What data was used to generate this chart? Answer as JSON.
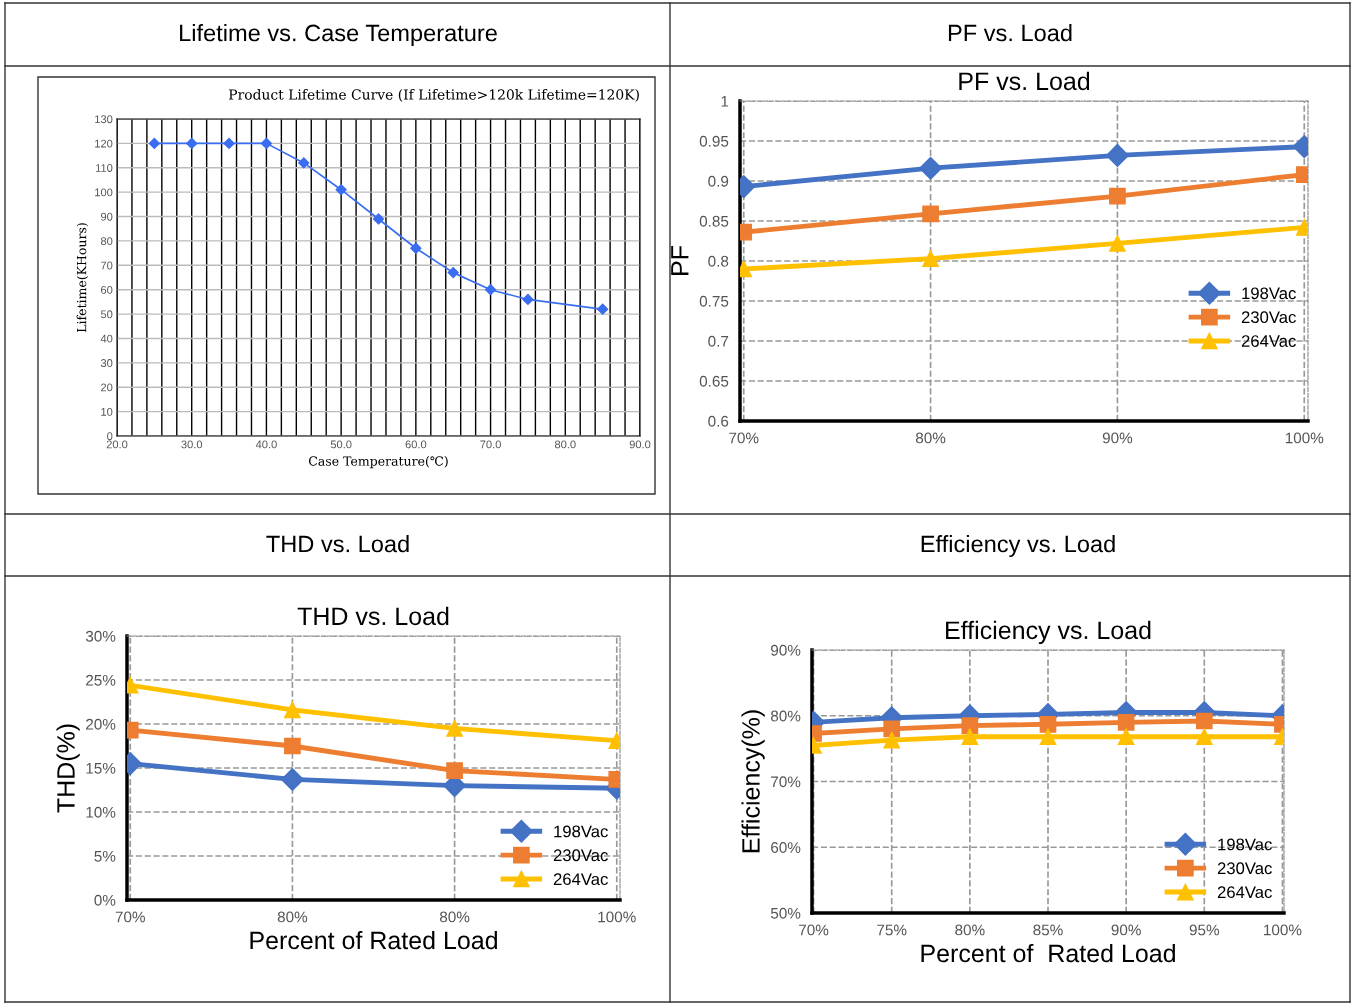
{
  "chart_data": [
    {
      "type": "line",
      "title": "Lifetime vs. Case Temperature",
      "subtitle": "Product Lifetime Curve (If Lifetime>120k Lifetime=120K)",
      "xlabel": "Case Temperature(℃)",
      "ylabel": "Lifetime(KHours)",
      "x": [
        25,
        30,
        35,
        40,
        45,
        50,
        55,
        60,
        65,
        70,
        75,
        85
      ],
      "series": [
        {
          "color": "#3a6df0",
          "marker": "diamond",
          "values": [
            120,
            120,
            120,
            120,
            112,
            101,
            89,
            77,
            67,
            60,
            56,
            52
          ]
        }
      ],
      "xlim": [
        20,
        90
      ],
      "xticks": [
        {
          "value": 20,
          "label": "20.0"
        },
        {
          "value": 22,
          "label": null
        },
        {
          "value": 24,
          "label": null
        },
        {
          "value": 26,
          "label": null
        },
        {
          "value": 28,
          "label": null
        },
        {
          "value": 30,
          "label": "30.0"
        },
        {
          "value": 32,
          "label": null
        },
        {
          "value": 34,
          "label": null
        },
        {
          "value": 36,
          "label": null
        },
        {
          "value": 38,
          "label": null
        },
        {
          "value": 40,
          "label": "40.0"
        },
        {
          "value": 42,
          "label": null
        },
        {
          "value": 44,
          "label": null
        },
        {
          "value": 46,
          "label": null
        },
        {
          "value": 48,
          "label": null
        },
        {
          "value": 50,
          "label": "50.0"
        },
        {
          "value": 52,
          "label": null
        },
        {
          "value": 54,
          "label": null
        },
        {
          "value": 56,
          "label": null
        },
        {
          "value": 58,
          "label": null
        },
        {
          "value": 60,
          "label": "60.0"
        },
        {
          "value": 62,
          "label": null
        },
        {
          "value": 64,
          "label": null
        },
        {
          "value": 66,
          "label": null
        },
        {
          "value": 68,
          "label": null
        },
        {
          "value": 70,
          "label": "70.0"
        },
        {
          "value": 72,
          "label": null
        },
        {
          "value": 74,
          "label": null
        },
        {
          "value": 76,
          "label": null
        },
        {
          "value": 78,
          "label": null
        },
        {
          "value": 80,
          "label": "80.0"
        },
        {
          "value": 82,
          "label": null
        },
        {
          "value": 84,
          "label": null
        },
        {
          "value": 86,
          "label": null
        },
        {
          "value": 88,
          "label": null
        },
        {
          "value": 90,
          "label": "90.0"
        }
      ],
      "ylim": [
        0,
        130
      ],
      "yticks": [
        0,
        10,
        20,
        30,
        40,
        50,
        60,
        70,
        80,
        90,
        100,
        110,
        120,
        130
      ],
      "grid": true,
      "line_style": "solid"
    },
    {
      "type": "line",
      "title": "PF vs. Load",
      "subtitle": "PF vs. Load",
      "ylabel": "PF",
      "categories": [
        "70%",
        "80%",
        "90%",
        "100%"
      ],
      "series": [
        {
          "name": "198Vac",
          "color": "#4472c4",
          "marker": "diamond",
          "values": [
            0.893,
            0.916,
            0.932,
            0.943
          ]
        },
        {
          "name": "230Vac",
          "color": "#ed7d31",
          "marker": "square",
          "values": [
            0.836,
            0.859,
            0.881,
            0.908
          ]
        },
        {
          "name": "264Vac",
          "color": "#ffc000",
          "marker": "triangle",
          "values": [
            0.79,
            0.803,
            0.822,
            0.842
          ]
        }
      ],
      "ylim": [
        0.6,
        1
      ],
      "yticks": [
        0.6,
        0.65,
        0.7,
        0.75,
        0.8,
        0.85,
        0.9,
        0.95,
        1
      ],
      "grid": true,
      "legend": "right",
      "line_style": "solid"
    },
    {
      "type": "line",
      "title": "THD vs. Load",
      "subtitle": "THD vs. Load",
      "xlabel": "Percent of Rated Load",
      "ylabel": "THD(%)",
      "categories": [
        "70%",
        "80%",
        "80%",
        "100%"
      ],
      "series": [
        {
          "name": "198Vac",
          "color": "#4472c4",
          "marker": "diamond",
          "values": [
            15.5,
            13.7,
            13.0,
            12.7
          ]
        },
        {
          "name": "230Vac",
          "color": "#ed7d31",
          "marker": "square",
          "values": [
            19.3,
            17.5,
            14.7,
            13.7
          ]
        },
        {
          "name": "264Vac",
          "color": "#ffc000",
          "marker": "triangle",
          "values": [
            24.4,
            21.6,
            19.5,
            18.1
          ]
        }
      ],
      "ylim": [
        0,
        30
      ],
      "yticks": [
        {
          "value": 0,
          "label": "0%"
        },
        {
          "value": 5,
          "label": "5%"
        },
        {
          "value": 10,
          "label": "10%"
        },
        {
          "value": 15,
          "label": "15%"
        },
        {
          "value": 20,
          "label": "20%"
        },
        {
          "value": 25,
          "label": "25%"
        },
        {
          "value": 30,
          "label": "30%"
        }
      ],
      "grid": true,
      "legend": "bottom right",
      "line_style": "solid"
    },
    {
      "type": "line",
      "title": "Efficiency vs. Load",
      "subtitle": "Efficiency vs. Load",
      "xlabel": "Percent of  Rated Load",
      "ylabel": "Efficiency(%)",
      "categories": [
        "70%",
        "75%",
        "80%",
        "85%",
        "90%",
        "95%",
        "100%"
      ],
      "series": [
        {
          "name": "198Vac",
          "color": "#4472c4",
          "marker": "diamond",
          "values": [
            79.0,
            79.7,
            80.0,
            80.2,
            80.5,
            80.5,
            80.0
          ]
        },
        {
          "name": "230Vac",
          "color": "#ed7d31",
          "marker": "square",
          "values": [
            77.3,
            78.0,
            78.5,
            78.7,
            79.0,
            79.2,
            78.7
          ]
        },
        {
          "name": "264Vac",
          "color": "#ffc000",
          "marker": "triangle",
          "values": [
            75.5,
            76.3,
            76.8,
            76.8,
            76.8,
            76.8,
            76.8
          ]
        }
      ],
      "ylim": [
        50,
        90
      ],
      "yticks": [
        {
          "value": 50,
          "label": "50%"
        },
        {
          "value": 60,
          "label": "60%"
        },
        {
          "value": 70,
          "label": "70%"
        },
        {
          "value": 80,
          "label": "80%"
        },
        {
          "value": 90,
          "label": "90%"
        }
      ],
      "grid": true,
      "legend": "bottom right",
      "line_style": "solid"
    }
  ]
}
